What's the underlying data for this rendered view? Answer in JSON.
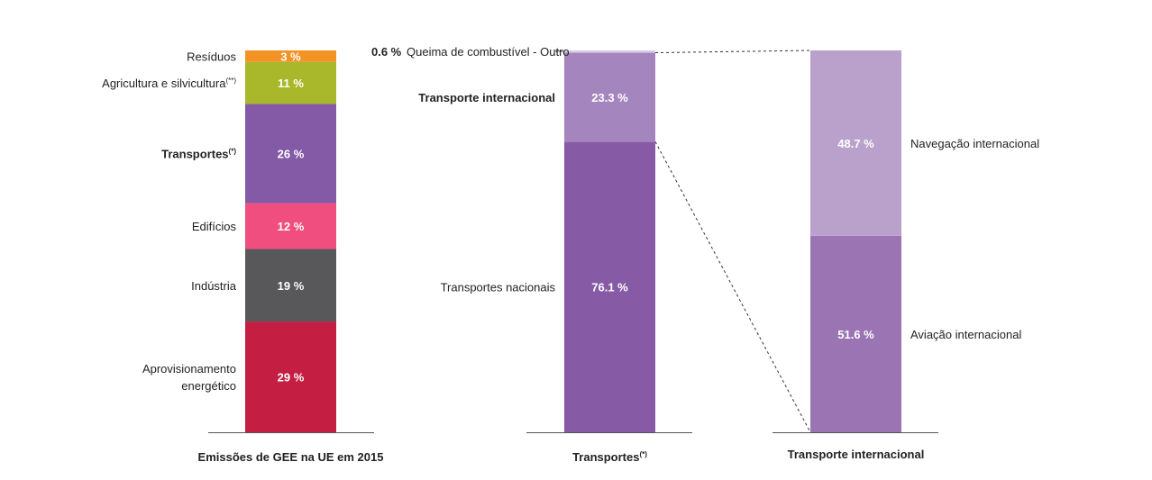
{
  "chart_data": [
    {
      "type": "bar",
      "stacked": true,
      "title": "Emissões de GEE na UE em 2015",
      "unit": "%",
      "segments": [
        {
          "label": "Aprovisionamento energético",
          "label_lines": [
            "Aprovisionamento",
            "energético"
          ],
          "value": 29,
          "display": "29 %",
          "color": "#c41f42"
        },
        {
          "label": "Indústria",
          "value": 19,
          "display": "19 %",
          "color": "#58585a"
        },
        {
          "label": "Edifícios",
          "value": 12,
          "display": "12 %",
          "color": "#f04e7f"
        },
        {
          "label": "Transportes",
          "footnote": "(*)",
          "bold": true,
          "value": 26,
          "display": "26 %",
          "color": "#8459a6"
        },
        {
          "label": "Agricultura e silvicultura",
          "footnote": "(**)",
          "value": 11,
          "display": "11 %",
          "color": "#a8b82a"
        },
        {
          "label": "Resíduos",
          "value": 3,
          "display": "3 %",
          "color": "#f39325"
        }
      ]
    },
    {
      "type": "bar",
      "stacked": true,
      "title": "Transportes",
      "title_footnote": "(*)",
      "unit": "%",
      "segments": [
        {
          "label": "Transportes nacionais",
          "value": 76.1,
          "display": "76.1 %",
          "color": "#875aa6"
        },
        {
          "label": "Transporte internacional",
          "bold": true,
          "value": 23.3,
          "display": "23.3 %",
          "color": "#a585bd"
        },
        {
          "label": "Queima de combustível - Outro",
          "value": 0.6,
          "display": "0.6 %",
          "color": "#d9cbe3"
        }
      ]
    },
    {
      "type": "bar",
      "stacked": true,
      "title": "Transporte internacional",
      "unit": "%",
      "segments": [
        {
          "label": "Aviação internacional",
          "value": 51.6,
          "display": "51.6 %",
          "color": "#9a74b3"
        },
        {
          "label": "Navegação internacional",
          "value": 48.7,
          "display": "48.7 %",
          "color": "#b9a1cc"
        }
      ]
    }
  ]
}
